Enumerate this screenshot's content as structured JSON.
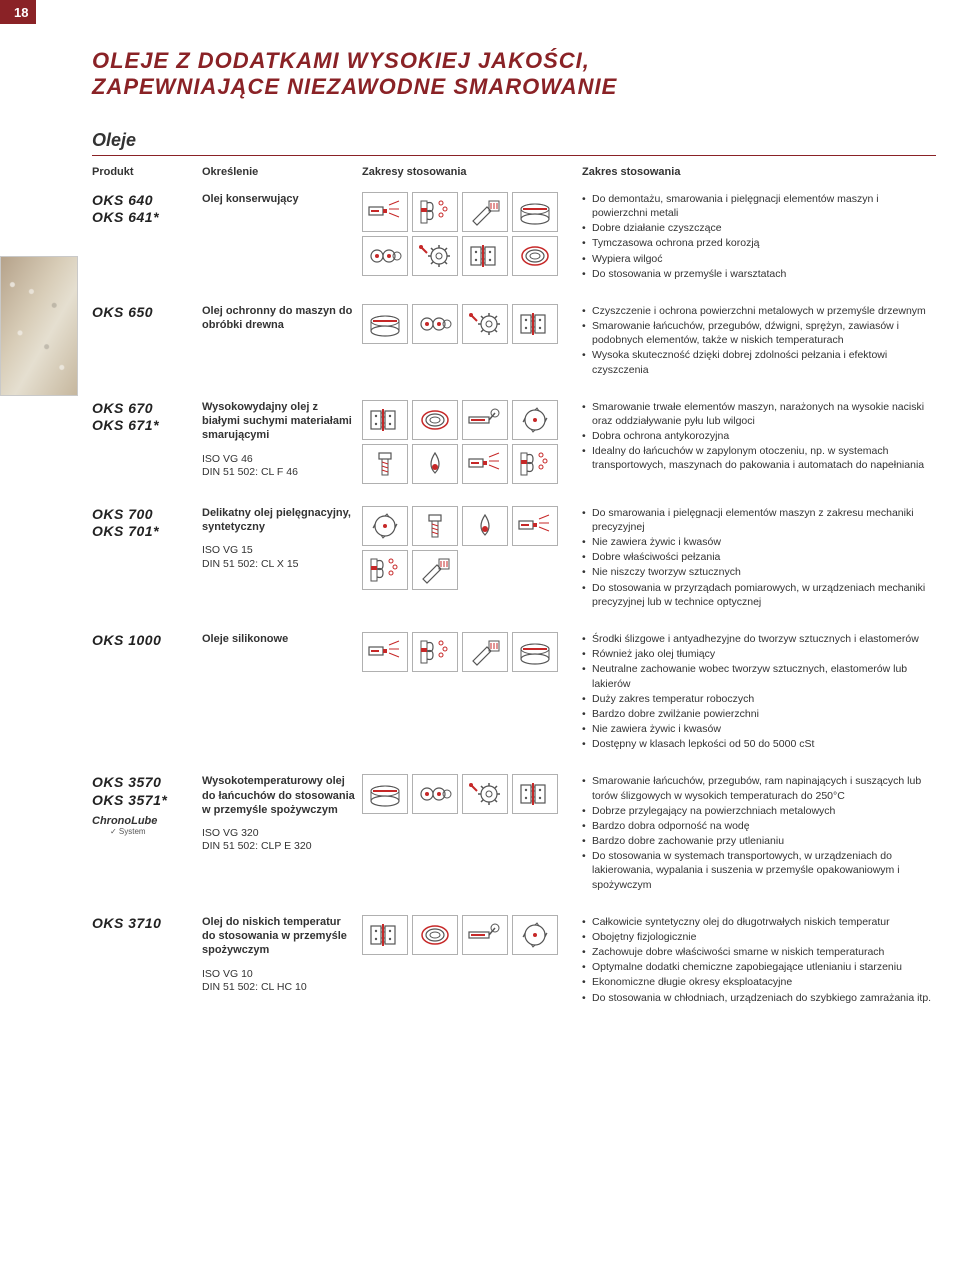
{
  "page_number": "18",
  "title_line1": "OLEJE Z DODATKAMI WYSOKIEJ JAKOŚCI,",
  "title_line2": "ZAPEWNIAJĄCE NIEZAWODNE SMAROWANIE",
  "section": "Oleje",
  "headers": {
    "product": "Produkt",
    "definition": "Określenie",
    "usage_range": "Zakresy stosowania",
    "usage": "Zakres stosowania"
  },
  "colors": {
    "brand_red": "#8a2226",
    "icon_red": "#c62828",
    "icon_border": "#b0b0b0",
    "text": "#333333"
  },
  "products": [
    {
      "codes": [
        "OKS 640",
        "OKS 641*"
      ],
      "desc_main": "Olej konserwujący",
      "desc_sub": "",
      "icon_count": 8,
      "uses": [
        "Do demontażu, smarowania i pielęgnacji elementów maszyn i powierzchni metali",
        "Dobre działanie czyszczące",
        "Tymczasowa ochrona przed korozją",
        "Wypiera wilgoć",
        "Do stosowania w przemyśle i warsztatach"
      ]
    },
    {
      "codes": [
        "OKS 650"
      ],
      "desc_main": "Olej ochronny do maszyn do obróbki drewna",
      "desc_sub": "",
      "icon_count": 4,
      "uses": [
        "Czyszczenie i ochrona powierzchni metalowych w przemyśle drzewnym",
        "Smarowanie łańcuchów, przegubów, dźwigni, sprężyn, zawiasów i podobnych elementów, także w niskich temperaturach",
        "Wysoka skuteczność dzięki dobrej zdolności pełzania i efektowi czyszczenia"
      ]
    },
    {
      "codes": [
        "OKS 670",
        "OKS 671*"
      ],
      "desc_main": "Wysokowydajny olej z białymi suchymi materiałami smarującymi",
      "desc_sub": "ISO VG 46\nDIN 51 502: CL F 46",
      "icon_count": 8,
      "uses": [
        "Smarowanie trwałe elementów maszyn, narażonych na wysokie naciski oraz oddziaływanie pyłu lub wilgoci",
        "Dobra ochrona antykorozyjna",
        "Idealny do łańcuchów w zapylonym otoczeniu, np. w systemach transportowych, maszynach do pakowania i automatach do napełniania"
      ]
    },
    {
      "codes": [
        "OKS 700",
        "OKS 701*"
      ],
      "desc_main": "Delikatny olej pielęgnacyjny, syntetyczny",
      "desc_sub": "ISO VG 15\nDIN 51 502: CL X 15",
      "icon_count": 6,
      "uses": [
        "Do smarowania i pielęgnacji elementów maszyn z zakresu mechaniki precyzyjnej",
        "Nie zawiera żywic i kwasów",
        "Dobre właściwości pełzania",
        "Nie niszczy tworzyw sztucznych",
        "Do stosowania w przyrządach pomiarowych, w urządzeniach mechaniki precyzyjnej lub w technice optycznej"
      ]
    },
    {
      "codes": [
        "OKS 1000"
      ],
      "desc_main": "Oleje silikonowe",
      "desc_sub": "",
      "icon_count": 4,
      "uses": [
        "Środki ślizgowe i antyadhezyjne do tworzyw sztucznych i elastomerów",
        "Również jako olej tłumiący",
        "Neutralne zachowanie wobec tworzyw sztucznych, elastomerów lub lakierów",
        "Duży zakres temperatur roboczych",
        "Bardzo dobre zwilżanie powierzchni",
        "Nie zawiera żywic i kwasów",
        "Dostępny w klasach lepkości od 50 do 5000 cSt"
      ]
    },
    {
      "codes": [
        "OKS 3570",
        "OKS 3571*"
      ],
      "chrono": true,
      "desc_main": "Wysokotemperaturowy olej do łańcuchów do stosowania w przemyśle spożywczym",
      "desc_sub": "ISO VG 320\nDIN 51 502: CLP E 320",
      "icon_count": 4,
      "uses": [
        "Smarowanie łańcuchów, przegubów, ram napinających i suszących lub torów ślizgowych w wysokich temperaturach do 250°C",
        "Dobrze przylegający na powierzchniach metalowych",
        "Bardzo dobra odporność na wodę",
        "Bardzo dobre zachowanie przy utlenianiu",
        "Do stosowania w systemach transportowych, w urządzeniach do lakierowania, wypalania i suszenia w przemyśle opakowaniowym i spożywczym"
      ]
    },
    {
      "codes": [
        "OKS 3710"
      ],
      "desc_main": "Olej do niskich temperatur do stosowania w przemyśle spożywczym",
      "desc_sub": "ISO VG 10\nDIN 51 502: CL HC 10",
      "icon_count": 4,
      "uses": [
        "Całkowicie syntetyczny olej do długotrwałych niskich temperatur",
        "Obojętny fizjologicznie",
        "Zachowuje dobre właściwości smarne w niskich temperaturach",
        "Optymalne dodatki chemiczne zapobiegające utlenianiu i starzeniu",
        "Ekonomiczne długie okresy eksploatacyjne",
        "Do stosowania w chłodniach, urządzeniach do szybkiego zamrażania itp."
      ]
    }
  ]
}
